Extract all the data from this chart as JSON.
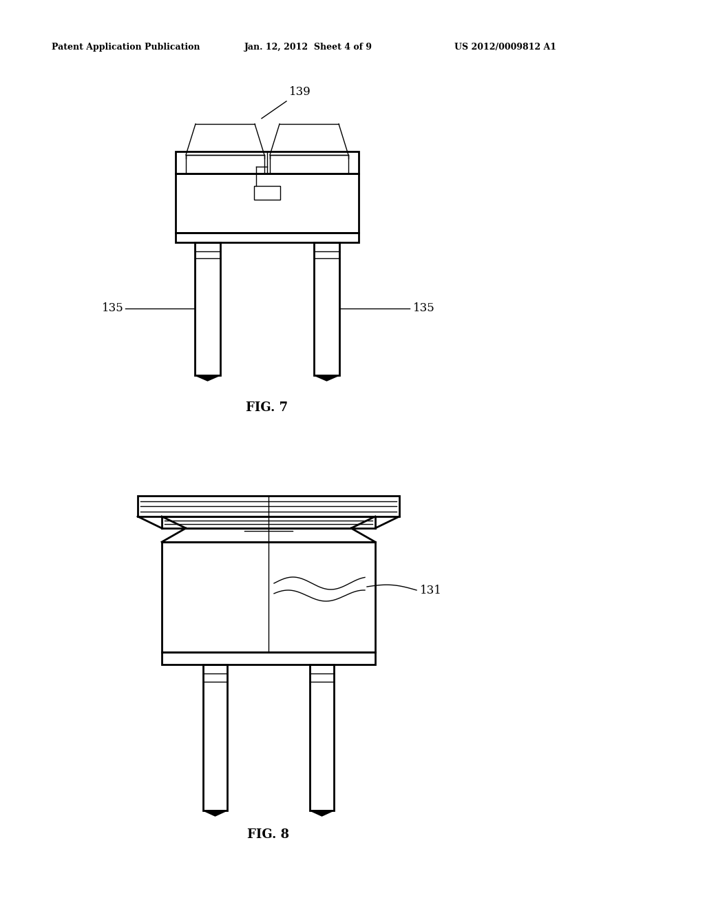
{
  "bg_color": "#ffffff",
  "line_color": "#000000",
  "header_left": "Patent Application Publication",
  "header_center": "Jan. 12, 2012  Sheet 4 of 9",
  "header_right": "US 2012/0009812 A1",
  "fig7_label": "FIG. 7",
  "fig8_label": "FIG. 8",
  "label_139": "139",
  "label_135_left": "135",
  "label_135_right": "135",
  "label_131": "131"
}
